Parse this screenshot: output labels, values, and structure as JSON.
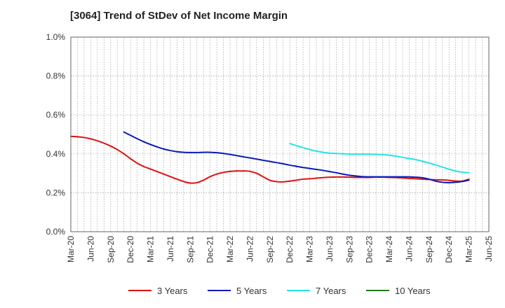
{
  "chart_data": {
    "type": "line",
    "title": "[3064]  Trend of StDev of Net Income Margin",
    "xlabel": "",
    "ylabel": "",
    "ylim": [
      0,
      1.0
    ],
    "y_ticks": [
      "0.0%",
      "0.2%",
      "0.4%",
      "0.6%",
      "0.8%",
      "1.0%"
    ],
    "x_ticks": [
      "Mar-20",
      "Jun-20",
      "Sep-20",
      "Dec-20",
      "Mar-21",
      "Jun-21",
      "Sep-21",
      "Dec-21",
      "Mar-22",
      "Jun-22",
      "Sep-22",
      "Dec-22",
      "Mar-23",
      "Jun-23",
      "Sep-23",
      "Dec-23",
      "Mar-24",
      "Jun-24",
      "Sep-24",
      "Dec-24",
      "Mar-25",
      "Jun-25"
    ],
    "grid": true,
    "legend_position": "bottom",
    "series": [
      {
        "name": "3 Years",
        "color": "#dd1111",
        "x": [
          "Mar-20",
          "Apr-20",
          "May-20",
          "Jun-20",
          "Jul-20",
          "Aug-20",
          "Sep-20",
          "Oct-20",
          "Nov-20",
          "Dec-20",
          "Jan-21",
          "Feb-21",
          "Mar-21",
          "Apr-21",
          "May-21",
          "Jun-21",
          "Jul-21",
          "Aug-21",
          "Sep-21",
          "Oct-21",
          "Nov-21",
          "Dec-21",
          "Jan-22",
          "Feb-22",
          "Mar-22",
          "Apr-22",
          "May-22",
          "Jun-22",
          "Jul-22",
          "Aug-22",
          "Sep-22",
          "Oct-22",
          "Nov-22",
          "Dec-22",
          "Jan-23",
          "Feb-23",
          "Mar-23",
          "Apr-23",
          "May-23",
          "Jun-23",
          "Jul-23",
          "Aug-23",
          "Sep-23",
          "Oct-23",
          "Nov-23",
          "Dec-23",
          "Jan-24",
          "Feb-24",
          "Mar-24",
          "Apr-24",
          "May-24",
          "Jun-24",
          "Jul-24",
          "Aug-24",
          "Sep-24",
          "Oct-24",
          "Nov-24",
          "Dec-24",
          "Jan-25",
          "Feb-25",
          "Mar-25"
        ],
        "values": [
          0.49,
          0.488,
          0.484,
          0.477,
          0.467,
          0.455,
          0.44,
          0.422,
          0.4,
          0.375,
          0.352,
          0.335,
          0.322,
          0.309,
          0.296,
          0.283,
          0.27,
          0.258,
          0.25,
          0.252,
          0.265,
          0.283,
          0.296,
          0.305,
          0.31,
          0.312,
          0.312,
          0.31,
          0.3,
          0.282,
          0.264,
          0.257,
          0.256,
          0.26,
          0.265,
          0.27,
          0.272,
          0.275,
          0.278,
          0.28,
          0.281,
          0.281,
          0.28,
          0.279,
          0.279,
          0.279,
          0.28,
          0.28,
          0.279,
          0.278,
          0.276,
          0.274,
          0.272,
          0.27,
          0.268,
          0.267,
          0.266,
          0.264,
          0.26,
          0.26,
          0.27
        ]
      },
      {
        "name": "5 Years",
        "color": "#0a1ab8",
        "x": [
          "Mar-20",
          "Apr-20",
          "May-20",
          "Jun-20",
          "Jul-20",
          "Aug-20",
          "Sep-20",
          "Oct-20",
          "Nov-20",
          "Dec-20",
          "Jan-21",
          "Feb-21",
          "Mar-21",
          "Apr-21",
          "May-21",
          "Jun-21",
          "Jul-21",
          "Aug-21",
          "Sep-21",
          "Oct-21",
          "Nov-21",
          "Dec-21",
          "Jan-22",
          "Feb-22",
          "Mar-22",
          "Apr-22",
          "May-22",
          "Jun-22",
          "Jul-22",
          "Aug-22",
          "Sep-22",
          "Oct-22",
          "Nov-22",
          "Dec-22",
          "Jan-23",
          "Feb-23",
          "Mar-23",
          "Apr-23",
          "May-23",
          "Jun-23",
          "Jul-23",
          "Aug-23",
          "Sep-23",
          "Oct-23",
          "Nov-23",
          "Dec-23",
          "Jan-24",
          "Feb-24",
          "Mar-24",
          "Apr-24",
          "May-24",
          "Jun-24",
          "Jul-24",
          "Aug-24",
          "Sep-24",
          "Oct-24",
          "Nov-24",
          "Dec-24",
          "Jan-25",
          "Feb-25",
          "Mar-25"
        ],
        "values": [
          null,
          null,
          null,
          null,
          null,
          null,
          null,
          null,
          0.512,
          0.495,
          0.478,
          0.462,
          0.448,
          0.436,
          0.425,
          0.417,
          0.411,
          0.408,
          0.407,
          0.407,
          0.408,
          0.408,
          0.406,
          0.402,
          0.397,
          0.391,
          0.385,
          0.379,
          0.373,
          0.367,
          0.361,
          0.355,
          0.349,
          0.342,
          0.336,
          0.33,
          0.325,
          0.32,
          0.315,
          0.309,
          0.303,
          0.296,
          0.29,
          0.286,
          0.283,
          0.282,
          0.282,
          0.282,
          0.282,
          0.282,
          0.282,
          0.282,
          0.28,
          0.277,
          0.27,
          0.26,
          0.254,
          0.252,
          0.254,
          0.258,
          0.265
        ]
      },
      {
        "name": "7 Years",
        "color": "#22e5e5",
        "x": [
          "Mar-20",
          "Apr-20",
          "May-20",
          "Jun-20",
          "Jul-20",
          "Aug-20",
          "Sep-20",
          "Oct-20",
          "Nov-20",
          "Dec-20",
          "Jan-21",
          "Feb-21",
          "Mar-21",
          "Apr-21",
          "May-21",
          "Jun-21",
          "Jul-21",
          "Aug-21",
          "Sep-21",
          "Oct-21",
          "Nov-21",
          "Dec-21",
          "Jan-22",
          "Feb-22",
          "Mar-22",
          "Apr-22",
          "May-22",
          "Jun-22",
          "Jul-22",
          "Aug-22",
          "Sep-22",
          "Oct-22",
          "Nov-22",
          "Dec-22",
          "Jan-23",
          "Feb-23",
          "Mar-23",
          "Apr-23",
          "May-23",
          "Jun-23",
          "Jul-23",
          "Aug-23",
          "Sep-23",
          "Oct-23",
          "Nov-23",
          "Dec-23",
          "Jan-24",
          "Feb-24",
          "Mar-24",
          "Apr-24",
          "May-24",
          "Jun-24",
          "Jul-24",
          "Aug-24",
          "Sep-24",
          "Oct-24",
          "Nov-24",
          "Dec-24",
          "Jan-25",
          "Feb-25",
          "Mar-25"
        ],
        "values": [
          null,
          null,
          null,
          null,
          null,
          null,
          null,
          null,
          null,
          null,
          null,
          null,
          null,
          null,
          null,
          null,
          null,
          null,
          null,
          null,
          null,
          null,
          null,
          null,
          null,
          null,
          null,
          null,
          null,
          null,
          null,
          null,
          null,
          0.453,
          0.442,
          0.432,
          0.422,
          0.414,
          0.408,
          0.404,
          0.402,
          0.4,
          0.399,
          0.399,
          0.399,
          0.399,
          0.398,
          0.396,
          0.393,
          0.388,
          0.382,
          0.376,
          0.37,
          0.362,
          0.353,
          0.343,
          0.332,
          0.321,
          0.312,
          0.306,
          0.303
        ]
      },
      {
        "name": "10 Years",
        "color": "#1e7b1e",
        "x": [],
        "values": []
      }
    ]
  }
}
